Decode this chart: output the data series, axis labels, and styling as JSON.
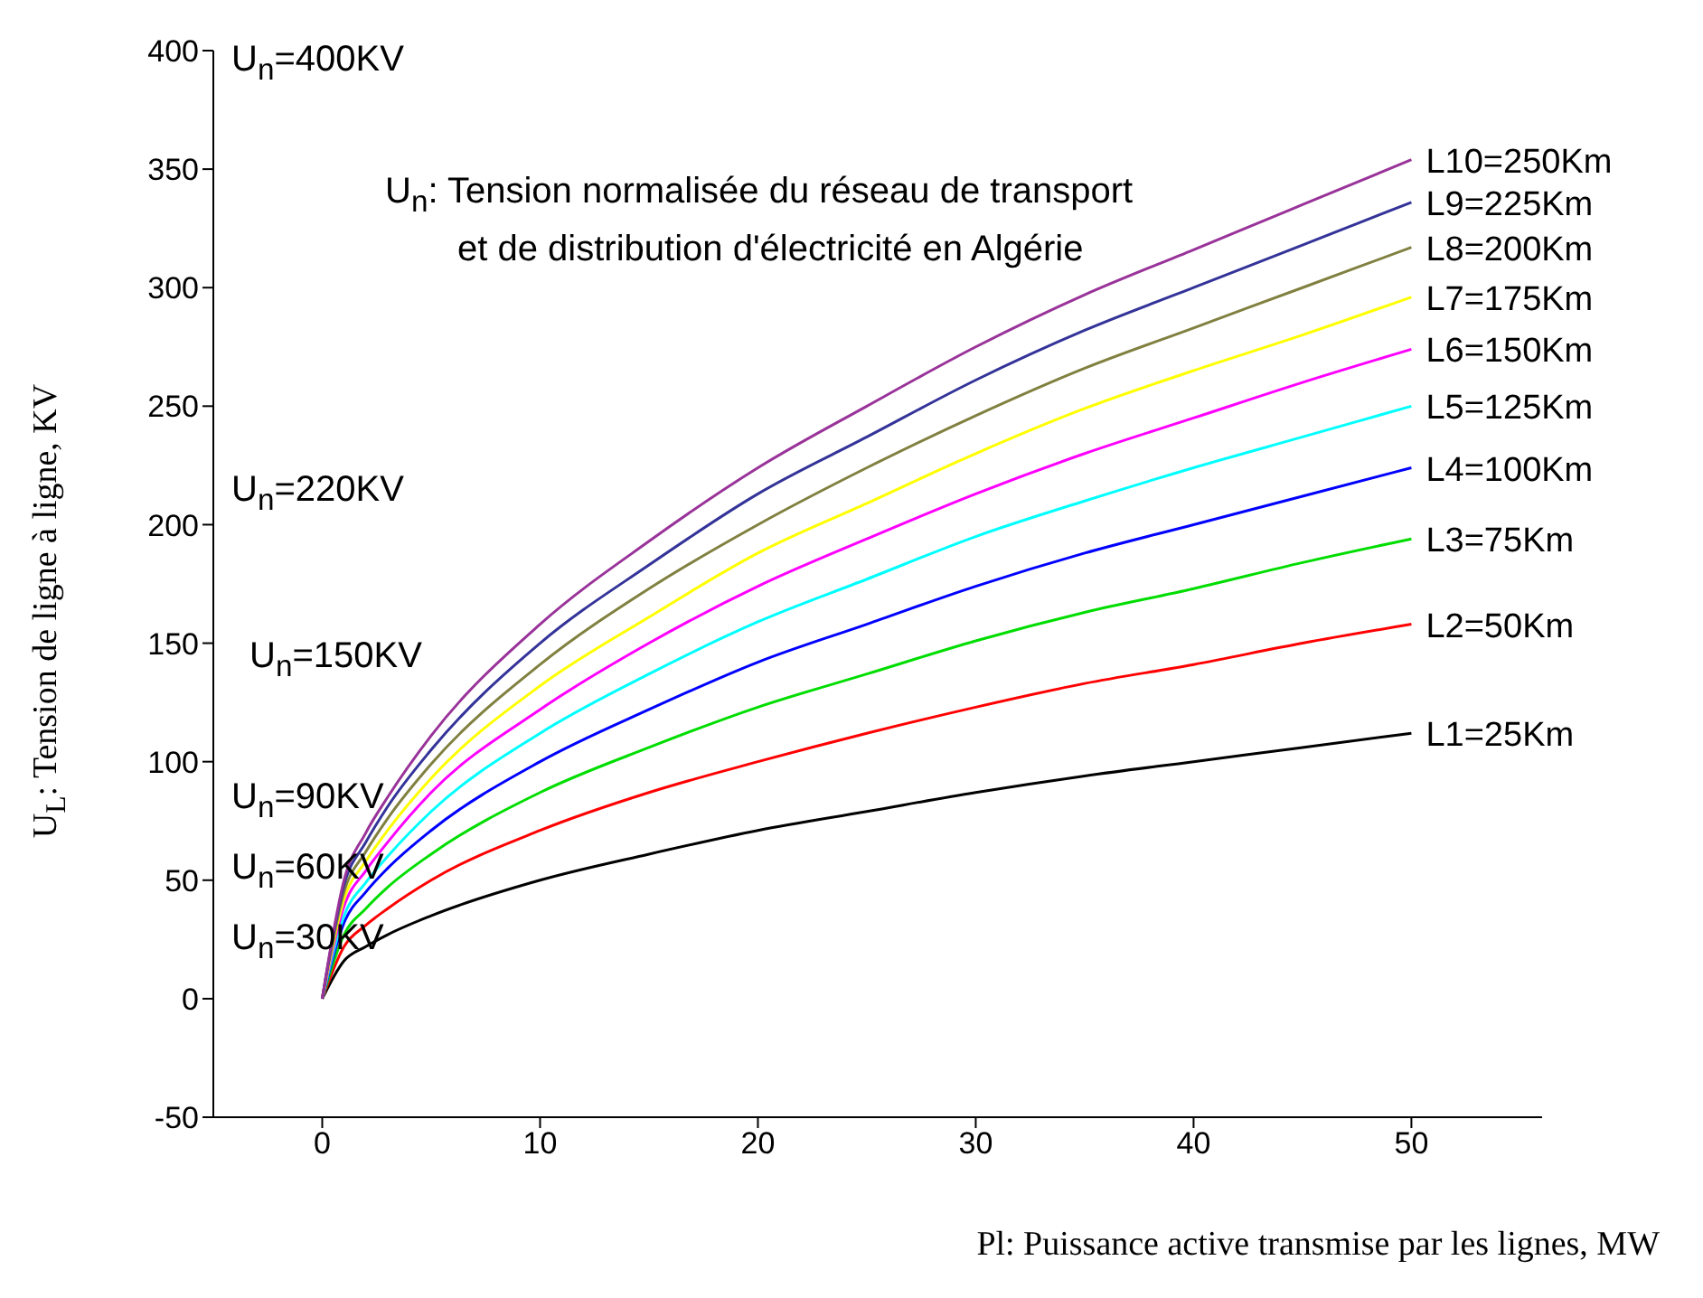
{
  "chart_data": {
    "type": "line",
    "xlabel": "Pl: Puissance active transmise par les lignes, MW",
    "ylabel": "U$_{L}$: Tension de ligne à ligne, KV",
    "x": [
      0,
      1,
      2,
      3,
      5,
      10,
      15,
      20,
      25,
      30,
      35,
      40,
      45,
      50
    ],
    "series": [
      {
        "name": "L1=25Km",
        "color": "#000000",
        "values": [
          0,
          16,
          22,
          27,
          35,
          50,
          61,
          71,
          79,
          87,
          94,
          100,
          106,
          112
        ]
      },
      {
        "name": "L2=50Km",
        "color": "#ff0000",
        "values": [
          0,
          22,
          31,
          38,
          50,
          71,
          87,
          100,
          112,
          123,
          133,
          141,
          150,
          158
        ]
      },
      {
        "name": "L3=75Km",
        "color": "#00dd00",
        "values": [
          0,
          27,
          38,
          47,
          61,
          87,
          106,
          123,
          137,
          151,
          163,
          173,
          184,
          194
        ]
      },
      {
        "name": "L4=100Km",
        "color": "#0000ff",
        "values": [
          0,
          32,
          45,
          55,
          71,
          100,
          122,
          142,
          158,
          174,
          188,
          200,
          212,
          224
        ]
      },
      {
        "name": "L5=125Km",
        "color": "#00ffff",
        "values": [
          0,
          35,
          49,
          60,
          79,
          112,
          137,
          159,
          177,
          195,
          210,
          224,
          237,
          250
        ]
      },
      {
        "name": "L6=150Km",
        "color": "#ff00ff",
        "values": [
          0,
          39,
          54,
          66,
          87,
          122,
          150,
          174,
          194,
          213,
          230,
          245,
          260,
          274
        ]
      },
      {
        "name": "L7=175Km",
        "color": "#ffff00",
        "values": [
          0,
          42,
          58,
          71,
          93,
          132,
          161,
          188,
          209,
          230,
          249,
          265,
          280,
          296
        ]
      },
      {
        "name": "L8=200Km",
        "color": "#808040",
        "values": [
          0,
          45,
          62,
          76,
          99,
          141,
          173,
          200,
          224,
          246,
          266,
          283,
          300,
          317
        ]
      },
      {
        "name": "L9=225Km",
        "color": "#333399",
        "values": [
          0,
          48,
          66,
          81,
          105,
          150,
          183,
          213,
          237,
          261,
          282,
          300,
          318,
          336
        ]
      },
      {
        "name": "L10=250Km",
        "color": "#993399",
        "values": [
          0,
          50,
          70,
          85,
          111,
          158,
          193,
          224,
          250,
          275,
          297,
          316,
          335,
          354
        ]
      }
    ],
    "xlim": [
      -5,
      56
    ],
    "xticks": [
      0,
      10,
      20,
      30,
      40,
      50
    ],
    "ylim": [
      -50,
      400
    ],
    "yticks": [
      -50,
      0,
      50,
      100,
      150,
      200,
      250,
      300,
      350,
      400
    ],
    "grid": false,
    "annotations": [
      "U$_{n}$=400KV",
      "U$_{n}$=220KV",
      "U$_{n}$=150KV",
      "U$_{n}$=90KV",
      "U$_{n}$=60KV",
      "U$_{n}$=30KV",
      "U$_{n}$: Tension normalisée du réseau de transport et de distribution d'électricité en Algérie"
    ]
  }
}
